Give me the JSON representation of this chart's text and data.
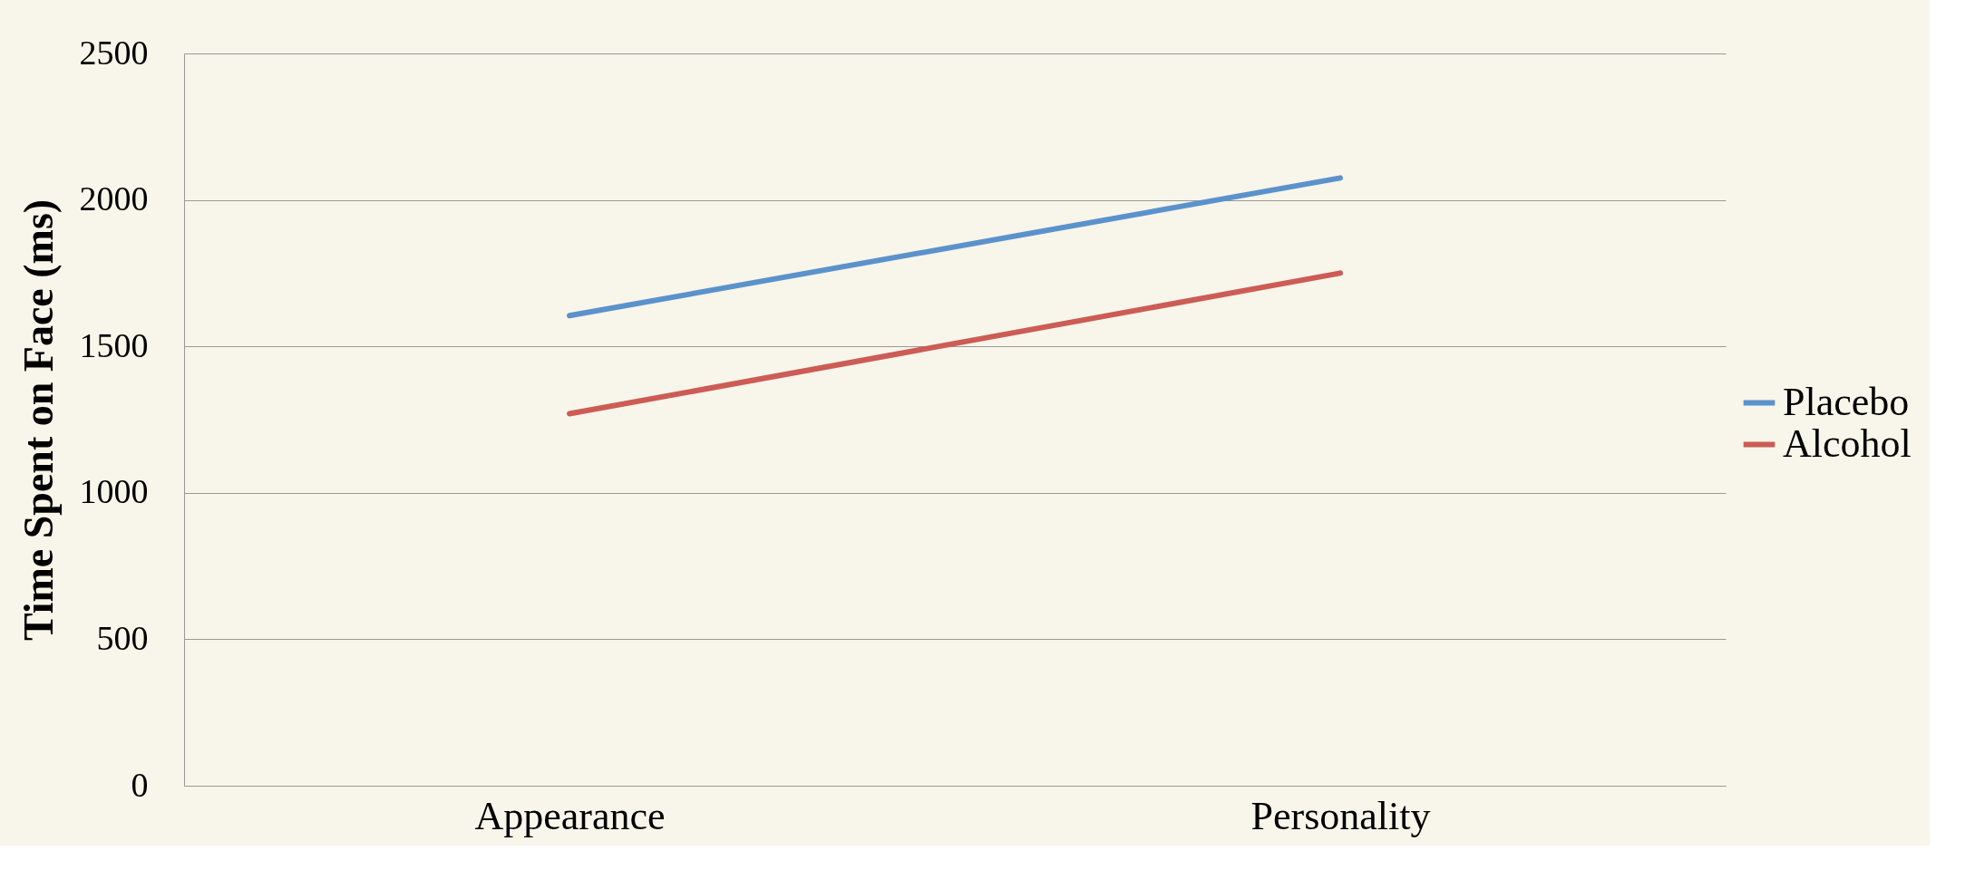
{
  "chart_data": {
    "type": "line",
    "ylabel": "Time Spent on Face (ms)",
    "categories": [
      "Appearance",
      "Personality"
    ],
    "series": [
      {
        "name": "Placebo",
        "color": "#5b92cc",
        "values": [
          1605,
          2075
        ]
      },
      {
        "name": "Alcohol",
        "color": "#cc5c55",
        "values": [
          1270,
          1750
        ]
      }
    ],
    "ylim": [
      0,
      2500
    ],
    "yticks": [
      0,
      500,
      1000,
      1500,
      2000,
      2500
    ],
    "grid": "y",
    "legend": "right"
  }
}
